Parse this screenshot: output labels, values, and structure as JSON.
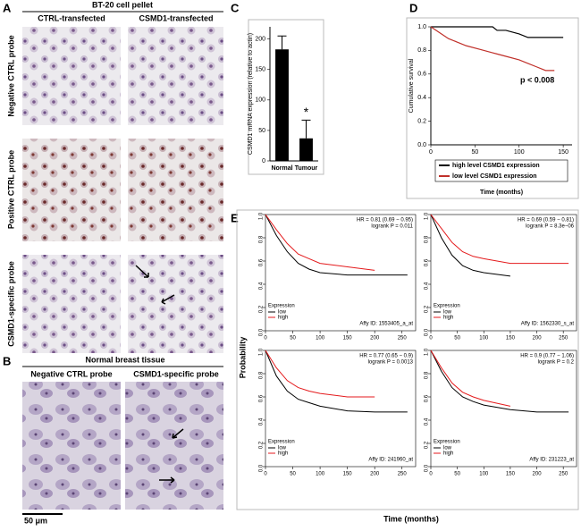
{
  "panel_labels": [
    "A",
    "B",
    "C",
    "D",
    "E"
  ],
  "panel_a": {
    "title": "BT-20 cell pellet",
    "columns": [
      "CTRL-transfected",
      "CSMD1-transfected"
    ],
    "rows": [
      "Negative CTRL probe",
      "Positive CTRL probe",
      "CSMD1-specific probe"
    ]
  },
  "panel_b": {
    "title": "Normal breast tissue",
    "columns": [
      "Negative CTRL probe",
      "CSMD1-specific probe"
    ],
    "scale_bar": "50 μm"
  },
  "panel_e": {
    "ylabel": "Probability",
    "xlabel": "Time (months)"
  },
  "chart_data": [
    {
      "type": "bar",
      "ylabel": "CSMD1 mRNA expression (relative to actin)",
      "categories": [
        "Normal",
        "Tumour"
      ],
      "values": [
        183,
        37
      ],
      "errors": [
        22,
        30
      ],
      "color": "#000000",
      "annotation": "*",
      "ylim": [
        0,
        220
      ],
      "yticks": [
        0,
        50,
        100,
        150,
        200
      ]
    },
    {
      "type": "line",
      "ylabel": "Cumulative survival",
      "xlabel": "Time (months)",
      "annotation": "p < 0.008",
      "legend": "below",
      "x": [
        0,
        10,
        20,
        30,
        40,
        55,
        70,
        75,
        85,
        100,
        110,
        120,
        130,
        140,
        150
      ],
      "series": [
        {
          "name": "high level CSMD1 expression",
          "color": "#000000",
          "values": [
            1,
            1,
            1,
            1,
            1,
            1,
            1,
            0.97,
            0.97,
            0.94,
            0.91,
            0.91,
            0.91,
            0.91,
            0.91
          ]
        },
        {
          "name": "low level CSMD1 expression",
          "color": "#c0302a",
          "values": [
            1,
            0.95,
            0.9,
            0.87,
            0.84,
            0.81,
            0.78,
            0.77,
            0.75,
            0.72,
            0.69,
            0.66,
            0.63,
            0.63,
            null
          ]
        }
      ],
      "xlim": [
        0,
        160
      ],
      "xticks": [
        0,
        50,
        100,
        150
      ],
      "ylim": [
        0,
        1
      ],
      "yticks": [
        {
          "value": 0,
          "label": "0.0"
        },
        0.2,
        0.4,
        0.6,
        0.8,
        {
          "value": 1,
          "label": "1.0"
        }
      ]
    },
    {
      "type": "line",
      "hr": "HR = 0.81 (0.69 − 0.95)",
      "logrank": "logrank P = 0.011",
      "affy_id": "Affy ID: 1553405_a_at",
      "legend_title": "Expression",
      "legend": "lower left",
      "x": [
        0,
        20,
        40,
        60,
        80,
        100,
        150,
        200,
        260
      ],
      "series": [
        {
          "name": "low",
          "color": "#000000",
          "values": [
            1,
            0.82,
            0.68,
            0.58,
            0.53,
            0.5,
            0.48,
            0.48,
            0.48
          ]
        },
        {
          "name": "high",
          "color": "#e41a1c",
          "values": [
            1,
            0.87,
            0.75,
            0.66,
            0.62,
            0.58,
            0.55,
            0.52,
            null
          ]
        }
      ],
      "xlim": [
        0,
        275
      ],
      "xticks": [
        0,
        50,
        100,
        150,
        200,
        250
      ],
      "ylim": [
        0,
        1
      ],
      "yticks": [
        {
          "value": 0,
          "label": "0.0"
        },
        0.2,
        0.4,
        0.6,
        0.8,
        {
          "value": 1,
          "label": "1.0"
        }
      ]
    },
    {
      "type": "line",
      "hr": "HR = 0.69 (0.59 − 0.81)",
      "logrank": "logrank P = 8.3e−06",
      "affy_id": "Affy ID: 1562330_s_at",
      "legend_title": "Expression",
      "legend": "lower left",
      "x": [
        0,
        20,
        40,
        60,
        80,
        100,
        150,
        200,
        260
      ],
      "series": [
        {
          "name": "low",
          "color": "#000000",
          "values": [
            1,
            0.8,
            0.65,
            0.56,
            0.52,
            0.5,
            0.47,
            null,
            null
          ]
        },
        {
          "name": "high",
          "color": "#e41a1c",
          "values": [
            1,
            0.88,
            0.76,
            0.68,
            0.64,
            0.62,
            0.58,
            0.58,
            0.58
          ]
        }
      ],
      "xlim": [
        0,
        275
      ],
      "xticks": [
        0,
        50,
        100,
        150,
        200,
        250
      ],
      "ylim": [
        0,
        1
      ],
      "yticks": [
        {
          "value": 0,
          "label": "0.0"
        },
        0.2,
        0.4,
        0.6,
        0.8,
        {
          "value": 1,
          "label": "1.0"
        }
      ]
    },
    {
      "type": "line",
      "hr": "HR = 0.77 (0.65 − 0.9)",
      "logrank": "logrank P = 0.0013",
      "affy_id": "Affy ID: 241960_at",
      "legend_title": "Expression",
      "legend": "lower left",
      "x": [
        0,
        20,
        40,
        60,
        80,
        100,
        150,
        200,
        260
      ],
      "series": [
        {
          "name": "low",
          "color": "#000000",
          "values": [
            1,
            0.78,
            0.65,
            0.58,
            0.55,
            0.52,
            0.48,
            0.47,
            0.47
          ]
        },
        {
          "name": "high",
          "color": "#e41a1c",
          "values": [
            1,
            0.85,
            0.74,
            0.68,
            0.65,
            0.63,
            0.6,
            0.6,
            null
          ]
        }
      ],
      "xlim": [
        0,
        275
      ],
      "xticks": [
        0,
        50,
        100,
        150,
        200,
        250
      ],
      "ylim": [
        0,
        1
      ],
      "yticks": [
        {
          "value": 0,
          "label": "0.0"
        },
        0.2,
        0.4,
        0.6,
        0.8,
        {
          "value": 1,
          "label": "1.0"
        }
      ]
    },
    {
      "type": "line",
      "hr": "HR = 0.9 (0.77 − 1.06)",
      "logrank": "logrank P = 0.2",
      "affy_id": "Affy ID: 231223_at",
      "legend_title": "Expression",
      "legend": "lower left",
      "x": [
        0,
        20,
        40,
        60,
        80,
        100,
        150,
        200,
        260
      ],
      "series": [
        {
          "name": "low",
          "color": "#000000",
          "values": [
            1,
            0.82,
            0.68,
            0.6,
            0.56,
            0.53,
            0.49,
            0.47,
            0.47
          ]
        },
        {
          "name": "high",
          "color": "#e41a1c",
          "values": [
            1,
            0.85,
            0.72,
            0.64,
            0.6,
            0.57,
            0.52,
            null,
            null
          ]
        }
      ],
      "xlim": [
        0,
        275
      ],
      "xticks": [
        0,
        50,
        100,
        150,
        200,
        250
      ],
      "ylim": [
        0,
        1
      ],
      "yticks": [
        {
          "value": 0,
          "label": "0.0"
        },
        0.2,
        0.4,
        0.6,
        0.8,
        {
          "value": 1,
          "label": "1.0"
        }
      ]
    }
  ]
}
